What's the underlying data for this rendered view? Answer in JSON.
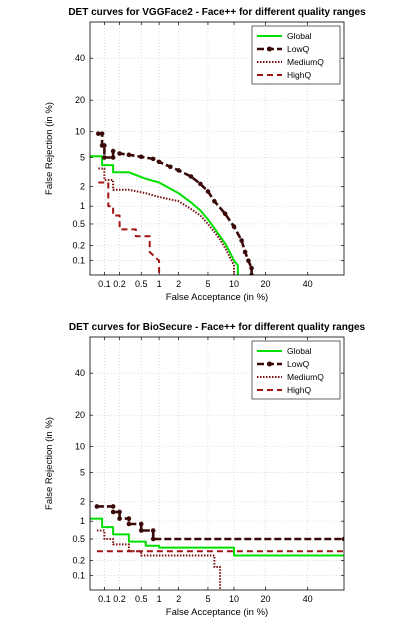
{
  "chart_data": [
    {
      "type": "line",
      "title": "DET curves for VGGFace2 - Face++ for different quality ranges",
      "xlabel": "False Acceptance (in %)",
      "ylabel": "False Rejection (in %)",
      "scale": "normal-deviate (probit) on both axes",
      "xlim": [
        0.05,
        60
      ],
      "ylim": [
        0.05,
        60
      ],
      "xticks": [
        0.1,
        0.2,
        0.5,
        1,
        2,
        5,
        10,
        20,
        40
      ],
      "yticks": [
        0.1,
        0.2,
        0.5,
        1,
        2,
        5,
        10,
        20,
        40
      ],
      "xtick_labels": [
        "0.1",
        "0.2",
        "0.5",
        "1",
        "2",
        "5",
        "10",
        "20",
        "40"
      ],
      "ytick_labels": [
        "0.1",
        "0.2",
        "0.5",
        "1",
        "2",
        "5",
        "10",
        "20",
        "40"
      ],
      "grid": true,
      "legend_position": "top-right",
      "series": [
        {
          "name": "Global",
          "color": "#00e000",
          "style": "solid",
          "points": [
            [
              0.05,
              5.2
            ],
            [
              0.09,
              5.2
            ],
            [
              0.09,
              4.0
            ],
            [
              0.15,
              4.0
            ],
            [
              0.15,
              3.2
            ],
            [
              0.3,
              3.2
            ],
            [
              0.6,
              2.6
            ],
            [
              1.0,
              2.3
            ],
            [
              2.0,
              1.6
            ],
            [
              3.0,
              1.15
            ],
            [
              4.0,
              0.85
            ],
            [
              5.0,
              0.6
            ],
            [
              6.0,
              0.42
            ],
            [
              7.0,
              0.3
            ],
            [
              8.0,
              0.22
            ],
            [
              9.0,
              0.15
            ],
            [
              10.0,
              0.1
            ],
            [
              11.0,
              0.08
            ],
            [
              11.0,
              0.05
            ]
          ]
        },
        {
          "name": "LowQ",
          "color": "#3a0a0a",
          "style": "dash-marker",
          "points": [
            [
              0.075,
              9.5
            ],
            [
              0.09,
              9.5
            ],
            [
              0.09,
              7.0
            ],
            [
              0.1,
              7.0
            ],
            [
              0.1,
              5.0
            ],
            [
              0.15,
              5.0
            ],
            [
              0.15,
              6.0
            ],
            [
              0.2,
              5.6
            ],
            [
              0.3,
              5.4
            ],
            [
              0.5,
              5.1
            ],
            [
              0.8,
              4.8
            ],
            [
              1.0,
              4.4
            ],
            [
              1.5,
              3.8
            ],
            [
              2.0,
              3.4
            ],
            [
              3.0,
              2.8
            ],
            [
              4.0,
              2.2
            ],
            [
              5.0,
              1.7
            ],
            [
              6.0,
              1.2
            ],
            [
              8.0,
              0.75
            ],
            [
              10.0,
              0.45
            ],
            [
              12.0,
              0.25
            ],
            [
              13.0,
              0.15
            ],
            [
              14.0,
              0.1
            ],
            [
              15.0,
              0.07
            ],
            [
              15.0,
              0.05
            ]
          ]
        },
        {
          "name": "MediumQ",
          "color": "#7a1010",
          "style": "dotted",
          "points": [
            [
              0.075,
              3.6
            ],
            [
              0.1,
              3.6
            ],
            [
              0.1,
              2.5
            ],
            [
              0.15,
              2.5
            ],
            [
              0.15,
              1.8
            ],
            [
              0.3,
              1.8
            ],
            [
              0.6,
              1.6
            ],
            [
              1.0,
              1.4
            ],
            [
              2.0,
              1.2
            ],
            [
              3.0,
              0.9
            ],
            [
              4.0,
              0.7
            ],
            [
              5.0,
              0.5
            ],
            [
              6.0,
              0.36
            ],
            [
              7.0,
              0.26
            ],
            [
              8.0,
              0.18
            ],
            [
              9.0,
              0.12
            ],
            [
              10.0,
              0.08
            ],
            [
              10.0,
              0.05
            ]
          ]
        },
        {
          "name": "HighQ",
          "color": "#a01414",
          "style": "dashed",
          "points": [
            [
              0.075,
              2.3
            ],
            [
              0.12,
              2.3
            ],
            [
              0.12,
              1.0
            ],
            [
              0.15,
              1.0
            ],
            [
              0.15,
              0.7
            ],
            [
              0.2,
              0.7
            ],
            [
              0.2,
              0.4
            ],
            [
              0.4,
              0.4
            ],
            [
              0.4,
              0.3
            ],
            [
              0.7,
              0.3
            ],
            [
              0.7,
              0.15
            ],
            [
              1.0,
              0.1
            ],
            [
              1.0,
              0.05
            ]
          ]
        }
      ]
    },
    {
      "type": "line",
      "title": "DET curves for BioSecure - Face++ for different quality ranges",
      "xlabel": "False Acceptance (in %)",
      "ylabel": "False Rejection (in %)",
      "scale": "normal-deviate (probit) on both axes",
      "xlim": [
        0.05,
        60
      ],
      "ylim": [
        0.05,
        60
      ],
      "xticks": [
        0.1,
        0.2,
        0.5,
        1,
        2,
        5,
        10,
        20,
        40
      ],
      "yticks": [
        0.1,
        0.2,
        0.5,
        1,
        2,
        5,
        10,
        20,
        40
      ],
      "xtick_labels": [
        "0.1",
        "0.2",
        "0.5",
        "1",
        "2",
        "5",
        "10",
        "20",
        "40"
      ],
      "ytick_labels": [
        "0.1",
        "0.2",
        "0.5",
        "1",
        "2",
        "5",
        "10",
        "20",
        "40"
      ],
      "grid": true,
      "legend_position": "top-right",
      "series": [
        {
          "name": "Global",
          "color": "#00e000",
          "style": "solid",
          "points": [
            [
              0.05,
              1.1
            ],
            [
              0.09,
              1.1
            ],
            [
              0.09,
              0.8
            ],
            [
              0.15,
              0.8
            ],
            [
              0.15,
              0.6
            ],
            [
              0.3,
              0.6
            ],
            [
              0.3,
              0.45
            ],
            [
              0.6,
              0.45
            ],
            [
              0.6,
              0.38
            ],
            [
              1.0,
              0.38
            ],
            [
              1.0,
              0.35
            ],
            [
              5.0,
              0.35
            ],
            [
              10.0,
              0.35
            ],
            [
              10.0,
              0.25
            ],
            [
              60.0,
              0.25
            ]
          ]
        },
        {
          "name": "LowQ",
          "color": "#3a0a0a",
          "style": "dash-marker",
          "points": [
            [
              0.07,
              1.7
            ],
            [
              0.15,
              1.7
            ],
            [
              0.15,
              1.4
            ],
            [
              0.2,
              1.4
            ],
            [
              0.2,
              1.1
            ],
            [
              0.3,
              1.1
            ],
            [
              0.3,
              0.9
            ],
            [
              0.5,
              0.9
            ],
            [
              0.5,
              0.7
            ],
            [
              0.8,
              0.7
            ],
            [
              0.8,
              0.5
            ],
            [
              60.0,
              0.5
            ]
          ]
        },
        {
          "name": "MediumQ",
          "color": "#7a1010",
          "style": "dotted",
          "points": [
            [
              0.07,
              0.7
            ],
            [
              0.1,
              0.7
            ],
            [
              0.1,
              0.5
            ],
            [
              0.15,
              0.5
            ],
            [
              0.15,
              0.4
            ],
            [
              0.3,
              0.4
            ],
            [
              0.3,
              0.3
            ],
            [
              0.5,
              0.3
            ],
            [
              0.5,
              0.25
            ],
            [
              6.0,
              0.25
            ],
            [
              6.0,
              0.15
            ],
            [
              7.0,
              0.15
            ],
            [
              7.0,
              0.05
            ]
          ]
        },
        {
          "name": "HighQ",
          "color": "#a01414",
          "style": "dashed",
          "points": [
            [
              0.07,
              0.3
            ],
            [
              60.0,
              0.3
            ]
          ]
        }
      ]
    }
  ]
}
